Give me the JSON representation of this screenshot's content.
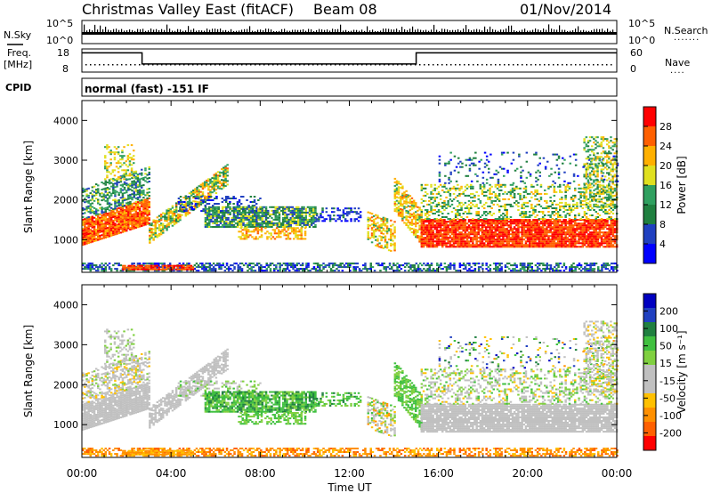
{
  "header": {
    "station": "Christmas Valley East (fitACF)",
    "beam": "Beam 08",
    "date": "01/Nov/2014"
  },
  "strip_labels": {
    "nsky": "N.Sky",
    "nsky_tick_hi": "10^5",
    "nsky_tick_lo": "10^0",
    "nsearch": "N.Search",
    "nsearch_tick_hi": "10^5",
    "nsearch_tick_lo": "10^0",
    "freq": "Freq.",
    "freq_unit": "[MHz]",
    "freq_tick_hi": "18",
    "freq_tick_lo": "8",
    "nave": "Nave",
    "nave_tick_hi": "60",
    "nave_tick_lo": "0",
    "cpid": "CPID",
    "cpid_value": "normal (fast) -151 IF"
  },
  "time_axis": {
    "label": "Time UT",
    "ticks": [
      "00:00",
      "04:00",
      "08:00",
      "12:00",
      "16:00",
      "20:00",
      "00:00"
    ]
  },
  "colors": {
    "power": [
      "#0000ff",
      "#2040c0",
      "#208040",
      "#30a060",
      "#e0e020",
      "#ffb000",
      "#ff6000",
      "#ff0000"
    ],
    "velocity": [
      "#ff0000",
      "#ff6000",
      "#ff9000",
      "#ffc000",
      "#c0c0c0",
      "#c0c0c0",
      "#80d040",
      "#40c040",
      "#208040",
      "#2040c0",
      "#0000c0"
    ]
  },
  "chart_data": [
    {
      "type": "heatmap",
      "title": "",
      "xlabel": "Time UT",
      "ylabel": "Slant Range [km]",
      "xlim": [
        0,
        24
      ],
      "ylim": [
        180,
        4500
      ],
      "yticks": [
        "4000",
        "3000",
        "2000",
        "1000"
      ],
      "colorbar_label": "Power [dB]",
      "colorbar_ticks": [
        "28",
        "24",
        "20",
        "16",
        "12",
        "8",
        "4"
      ]
    },
    {
      "type": "heatmap",
      "title": "",
      "xlabel": "Time UT",
      "ylabel": "Slant Range [km]",
      "xlim": [
        0,
        24
      ],
      "ylim": [
        180,
        4500
      ],
      "yticks": [
        "4000",
        "3000",
        "2000",
        "1000"
      ],
      "colorbar_label": "Velocity [m s⁻¹]",
      "colorbar_ticks": [
        "200",
        "100",
        "50",
        "15",
        "-15",
        "-50",
        "-100",
        "-200"
      ]
    },
    {
      "type": "line",
      "title": "",
      "xlabel": "Time UT",
      "ylabel": "Freq. [MHz]",
      "ylim": [
        8,
        18
      ],
      "x": [
        0,
        2.7,
        2.7,
        15.0,
        15.0,
        24
      ],
      "values": [
        16.3,
        16.3,
        11.5,
        11.5,
        16.3,
        16.3
      ]
    }
  ]
}
